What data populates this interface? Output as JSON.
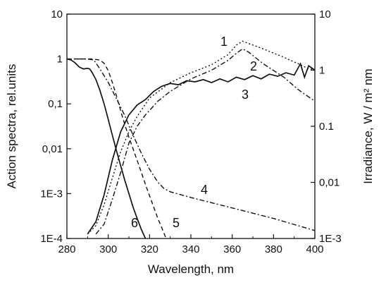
{
  "chart_data": {
    "type": "line",
    "xlabel": "Wavelength, nm",
    "ylabel_left": "Action spectra, rel.units",
    "ylabel_right": "Irradiance, W / m² nm",
    "xlim": [
      280,
      400
    ],
    "ylim_left": [
      0.0001,
      10
    ],
    "ylim_right": [
      0.001,
      10
    ],
    "y_scale": "log",
    "grid": false,
    "x_ticks": [
      {
        "value": 280,
        "label": "280"
      },
      {
        "value": 300,
        "label": "300"
      },
      {
        "value": 320,
        "label": "320"
      },
      {
        "value": 340,
        "label": "340"
      },
      {
        "value": 360,
        "label": "360"
      },
      {
        "value": 380,
        "label": "380"
      },
      {
        "value": 400,
        "label": "400"
      }
    ],
    "y_ticks_left": [
      {
        "value": 10,
        "label": "10"
      },
      {
        "value": 1,
        "label": "1"
      },
      {
        "value": 0.1,
        "label": "0,1"
      },
      {
        "value": 0.01,
        "label": "0,01"
      },
      {
        "value": 0.001,
        "label": "1E-3"
      },
      {
        "value": 0.0001,
        "label": "1E-4"
      }
    ],
    "y_ticks_right": [
      {
        "value": 10,
        "label": "10"
      },
      {
        "value": 1,
        "label": "1"
      },
      {
        "value": 0.1,
        "label": "0.1"
      },
      {
        "value": 0.01,
        "label": "0,01"
      },
      {
        "value": 0.001,
        "label": "1E-3"
      }
    ],
    "series": [
      {
        "label": "1",
        "axis": "right",
        "style": "dotted",
        "points": [
          [
            290,
            0.0012
          ],
          [
            294,
            0.0017
          ],
          [
            298,
            0.004
          ],
          [
            302,
            0.012
          ],
          [
            306,
            0.035
          ],
          [
            310,
            0.08
          ],
          [
            314,
            0.15
          ],
          [
            320,
            0.32
          ],
          [
            330,
            0.6
          ],
          [
            340,
            0.9
          ],
          [
            350,
            1.25
          ],
          [
            358,
            1.9
          ],
          [
            362,
            2.8
          ],
          [
            365,
            3.3
          ],
          [
            368,
            3.0
          ],
          [
            375,
            2.4
          ],
          [
            385,
            1.7
          ],
          [
            392,
            1.3
          ],
          [
            396,
            1.1
          ],
          [
            400,
            1.0
          ]
        ]
      },
      {
        "label": "2",
        "axis": "right",
        "style": "dash-dot",
        "points": [
          [
            294,
            0.0012
          ],
          [
            298,
            0.0018
          ],
          [
            302,
            0.005
          ],
          [
            306,
            0.015
          ],
          [
            310,
            0.05
          ],
          [
            314,
            0.1
          ],
          [
            318,
            0.16
          ],
          [
            324,
            0.28
          ],
          [
            330,
            0.42
          ],
          [
            340,
            0.7
          ],
          [
            350,
            1.0
          ],
          [
            358,
            1.5
          ],
          [
            362,
            2.0
          ],
          [
            365,
            2.4
          ],
          [
            368,
            2.1
          ],
          [
            375,
            1.3
          ],
          [
            385,
            0.75
          ],
          [
            392,
            0.45
          ],
          [
            400,
            0.28
          ]
        ]
      },
      {
        "label": "3",
        "axis": "right",
        "style": "solid",
        "points": [
          [
            290,
            0.0012
          ],
          [
            294,
            0.002
          ],
          [
            298,
            0.006
          ],
          [
            302,
            0.025
          ],
          [
            306,
            0.08
          ],
          [
            310,
            0.16
          ],
          [
            314,
            0.24
          ],
          [
            318,
            0.3
          ],
          [
            322,
            0.42
          ],
          [
            326,
            0.52
          ],
          [
            330,
            0.58
          ],
          [
            334,
            0.55
          ],
          [
            338,
            0.65
          ],
          [
            342,
            0.62
          ],
          [
            346,
            0.68
          ],
          [
            350,
            0.6
          ],
          [
            354,
            0.7
          ],
          [
            358,
            0.62
          ],
          [
            362,
            0.75
          ],
          [
            366,
            0.68
          ],
          [
            370,
            0.8
          ],
          [
            374,
            0.7
          ],
          [
            378,
            0.85
          ],
          [
            382,
            0.78
          ],
          [
            386,
            0.9
          ],
          [
            390,
            0.82
          ],
          [
            393,
            1.3
          ],
          [
            395,
            0.75
          ],
          [
            397,
            1.2
          ],
          [
            400,
            1.0
          ]
        ]
      },
      {
        "label": "4",
        "axis": "left",
        "style": "dash-dot",
        "points": [
          [
            280,
            1
          ],
          [
            283,
            1
          ],
          [
            286,
            1
          ],
          [
            290,
            1
          ],
          [
            293,
            0.95
          ],
          [
            296,
            0.6
          ],
          [
            300,
            0.3
          ],
          [
            304,
            0.13
          ],
          [
            308,
            0.055
          ],
          [
            312,
            0.02
          ],
          [
            316,
            0.008
          ],
          [
            320,
            0.0035
          ],
          [
            324,
            0.0018
          ],
          [
            327,
            0.0013
          ],
          [
            330,
            0.0011
          ],
          [
            340,
            0.00082
          ],
          [
            360,
            0.00048
          ],
          [
            380,
            0.00028
          ],
          [
            400,
            0.00015
          ]
        ]
      },
      {
        "label": "5",
        "axis": "left",
        "style": "dashed",
        "points": [
          [
            280,
            1
          ],
          [
            286,
            1
          ],
          [
            292,
            1
          ],
          [
            296,
            0.95
          ],
          [
            298,
            0.8
          ],
          [
            300,
            0.55
          ],
          [
            302,
            0.3
          ],
          [
            304,
            0.15
          ],
          [
            306,
            0.07
          ],
          [
            308,
            0.035
          ],
          [
            310,
            0.018
          ],
          [
            312,
            0.01
          ],
          [
            314,
            0.0055
          ],
          [
            316,
            0.003
          ],
          [
            318,
            0.0016
          ],
          [
            320,
            0.0009
          ],
          [
            322,
            0.0005
          ],
          [
            324,
            0.00028
          ],
          [
            326,
            0.00017
          ],
          [
            328,
            0.0001
          ]
        ]
      },
      {
        "label": "6",
        "axis": "left",
        "style": "solid",
        "points": [
          [
            280,
            1
          ],
          [
            282,
            0.95
          ],
          [
            284,
            0.82
          ],
          [
            286,
            0.66
          ],
          [
            288,
            0.6
          ],
          [
            290,
            0.62
          ],
          [
            291,
            0.6
          ],
          [
            292,
            0.52
          ],
          [
            294,
            0.35
          ],
          [
            296,
            0.2
          ],
          [
            298,
            0.1
          ],
          [
            300,
            0.045
          ],
          [
            302,
            0.02
          ],
          [
            304,
            0.009
          ],
          [
            306,
            0.0042
          ],
          [
            308,
            0.002
          ],
          [
            310,
            0.001
          ],
          [
            312,
            0.0005
          ],
          [
            314,
            0.00028
          ],
          [
            316,
            0.00016
          ],
          [
            318,
            0.0001
          ]
        ]
      }
    ]
  }
}
